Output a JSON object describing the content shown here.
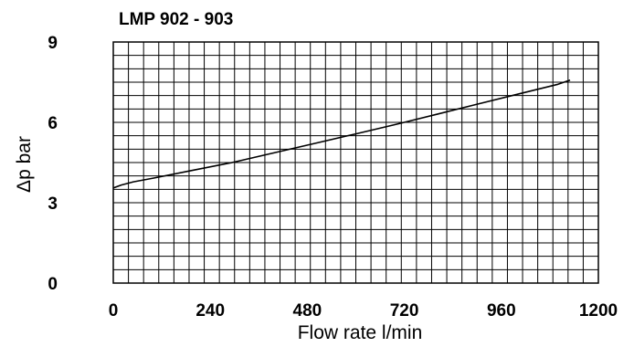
{
  "chart_data": {
    "type": "line",
    "title": "LMP 902 - 903",
    "xlabel": "Flow rate l/min",
    "ylabel": "Δp bar",
    "xlim": [
      0,
      1200
    ],
    "ylim": [
      0,
      9
    ],
    "xticks": [
      "0",
      "240",
      "480",
      "720",
      "960",
      "1200"
    ],
    "yticks": [
      "0",
      "3",
      "6",
      "9"
    ],
    "grid": true,
    "series": [
      {
        "color": "#000000",
        "x": [
          0,
          20,
          50,
          100,
          200,
          300,
          400,
          500,
          600,
          700,
          800,
          900,
          1000,
          1100,
          1130
        ],
        "y": [
          3.55,
          3.66,
          3.78,
          3.92,
          4.22,
          4.52,
          4.87,
          5.22,
          5.57,
          5.93,
          6.3,
          6.68,
          7.05,
          7.42,
          7.58
        ]
      }
    ]
  }
}
